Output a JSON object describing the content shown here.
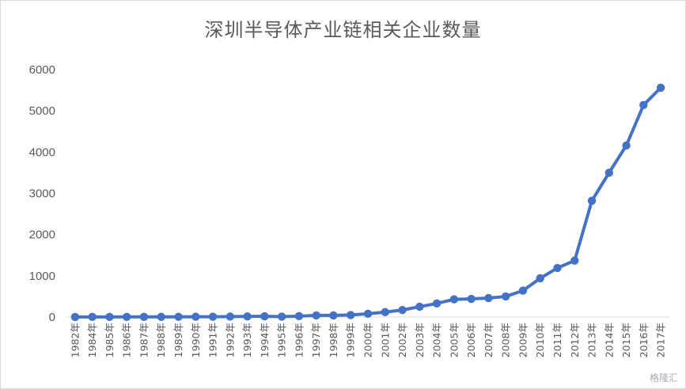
{
  "chart_data": {
    "type": "line",
    "title": "深圳半导体产业链相关企业数量",
    "xlabel": "",
    "ylabel": "",
    "ylim": [
      0,
      6000
    ],
    "yticks": [
      0,
      1000,
      2000,
      3000,
      4000,
      5000,
      6000
    ],
    "grid": false,
    "legend": "none",
    "series_color": "#4472C4",
    "categories": [
      "1982年",
      "1984年",
      "1985年",
      "1986年",
      "1987年",
      "1988年",
      "1989年",
      "1990年",
      "1991年",
      "1992年",
      "1993年",
      "1994年",
      "1995年",
      "1996年",
      "1997年",
      "1998年",
      "1999年",
      "2000年",
      "2001年",
      "2002年",
      "2003年",
      "2004年",
      "2005年",
      "2006年",
      "2007年",
      "2008年",
      "2009年",
      "2010年",
      "2011年",
      "2012年",
      "2013年",
      "2014年",
      "2015年",
      "2016年",
      "2017年"
    ],
    "values": [
      2,
      3,
      3,
      4,
      4,
      5,
      6,
      7,
      8,
      12,
      15,
      18,
      10,
      22,
      40,
      40,
      50,
      80,
      120,
      170,
      250,
      330,
      430,
      440,
      460,
      500,
      640,
      940,
      1190,
      1370,
      2820,
      3500,
      4160,
      5140,
      5560
    ]
  },
  "watermark": "格隆汇"
}
